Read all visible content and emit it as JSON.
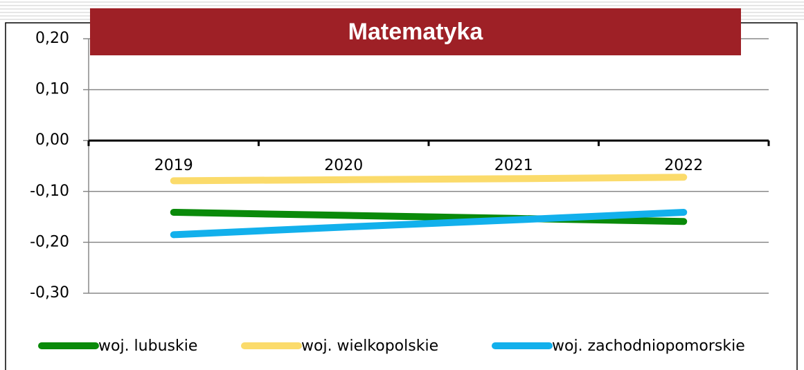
{
  "chart_data": {
    "type": "line",
    "title": "Matematyka",
    "categories": [
      "2019",
      "2020",
      "2021",
      "2022"
    ],
    "series": [
      {
        "name": "woj. lubuskie",
        "color": "#0a8a0a",
        "values": [
          -0.141,
          -0.147,
          -0.153,
          -0.159
        ]
      },
      {
        "name": "woj. wielkopolskie",
        "color": "#fbdb6b",
        "values": [
          -0.079,
          -0.077,
          -0.075,
          -0.072
        ]
      },
      {
        "name": "woj. zachodniopomorskie",
        "color": "#12b0ec",
        "values": [
          -0.185,
          -0.17,
          -0.156,
          -0.141
        ]
      }
    ],
    "ylim": [
      -0.3,
      0.2
    ],
    "yticks": [
      {
        "value": 0.2,
        "label": "0,20"
      },
      {
        "value": 0.1,
        "label": "0,10"
      },
      {
        "value": 0,
        "label": "0,00"
      },
      {
        "value": -0.1,
        "label": "-0,10"
      },
      {
        "value": -0.2,
        "label": "-0,20"
      },
      {
        "value": -0.3,
        "label": "-0,30"
      }
    ],
    "grid": true,
    "legend": "bottom"
  }
}
